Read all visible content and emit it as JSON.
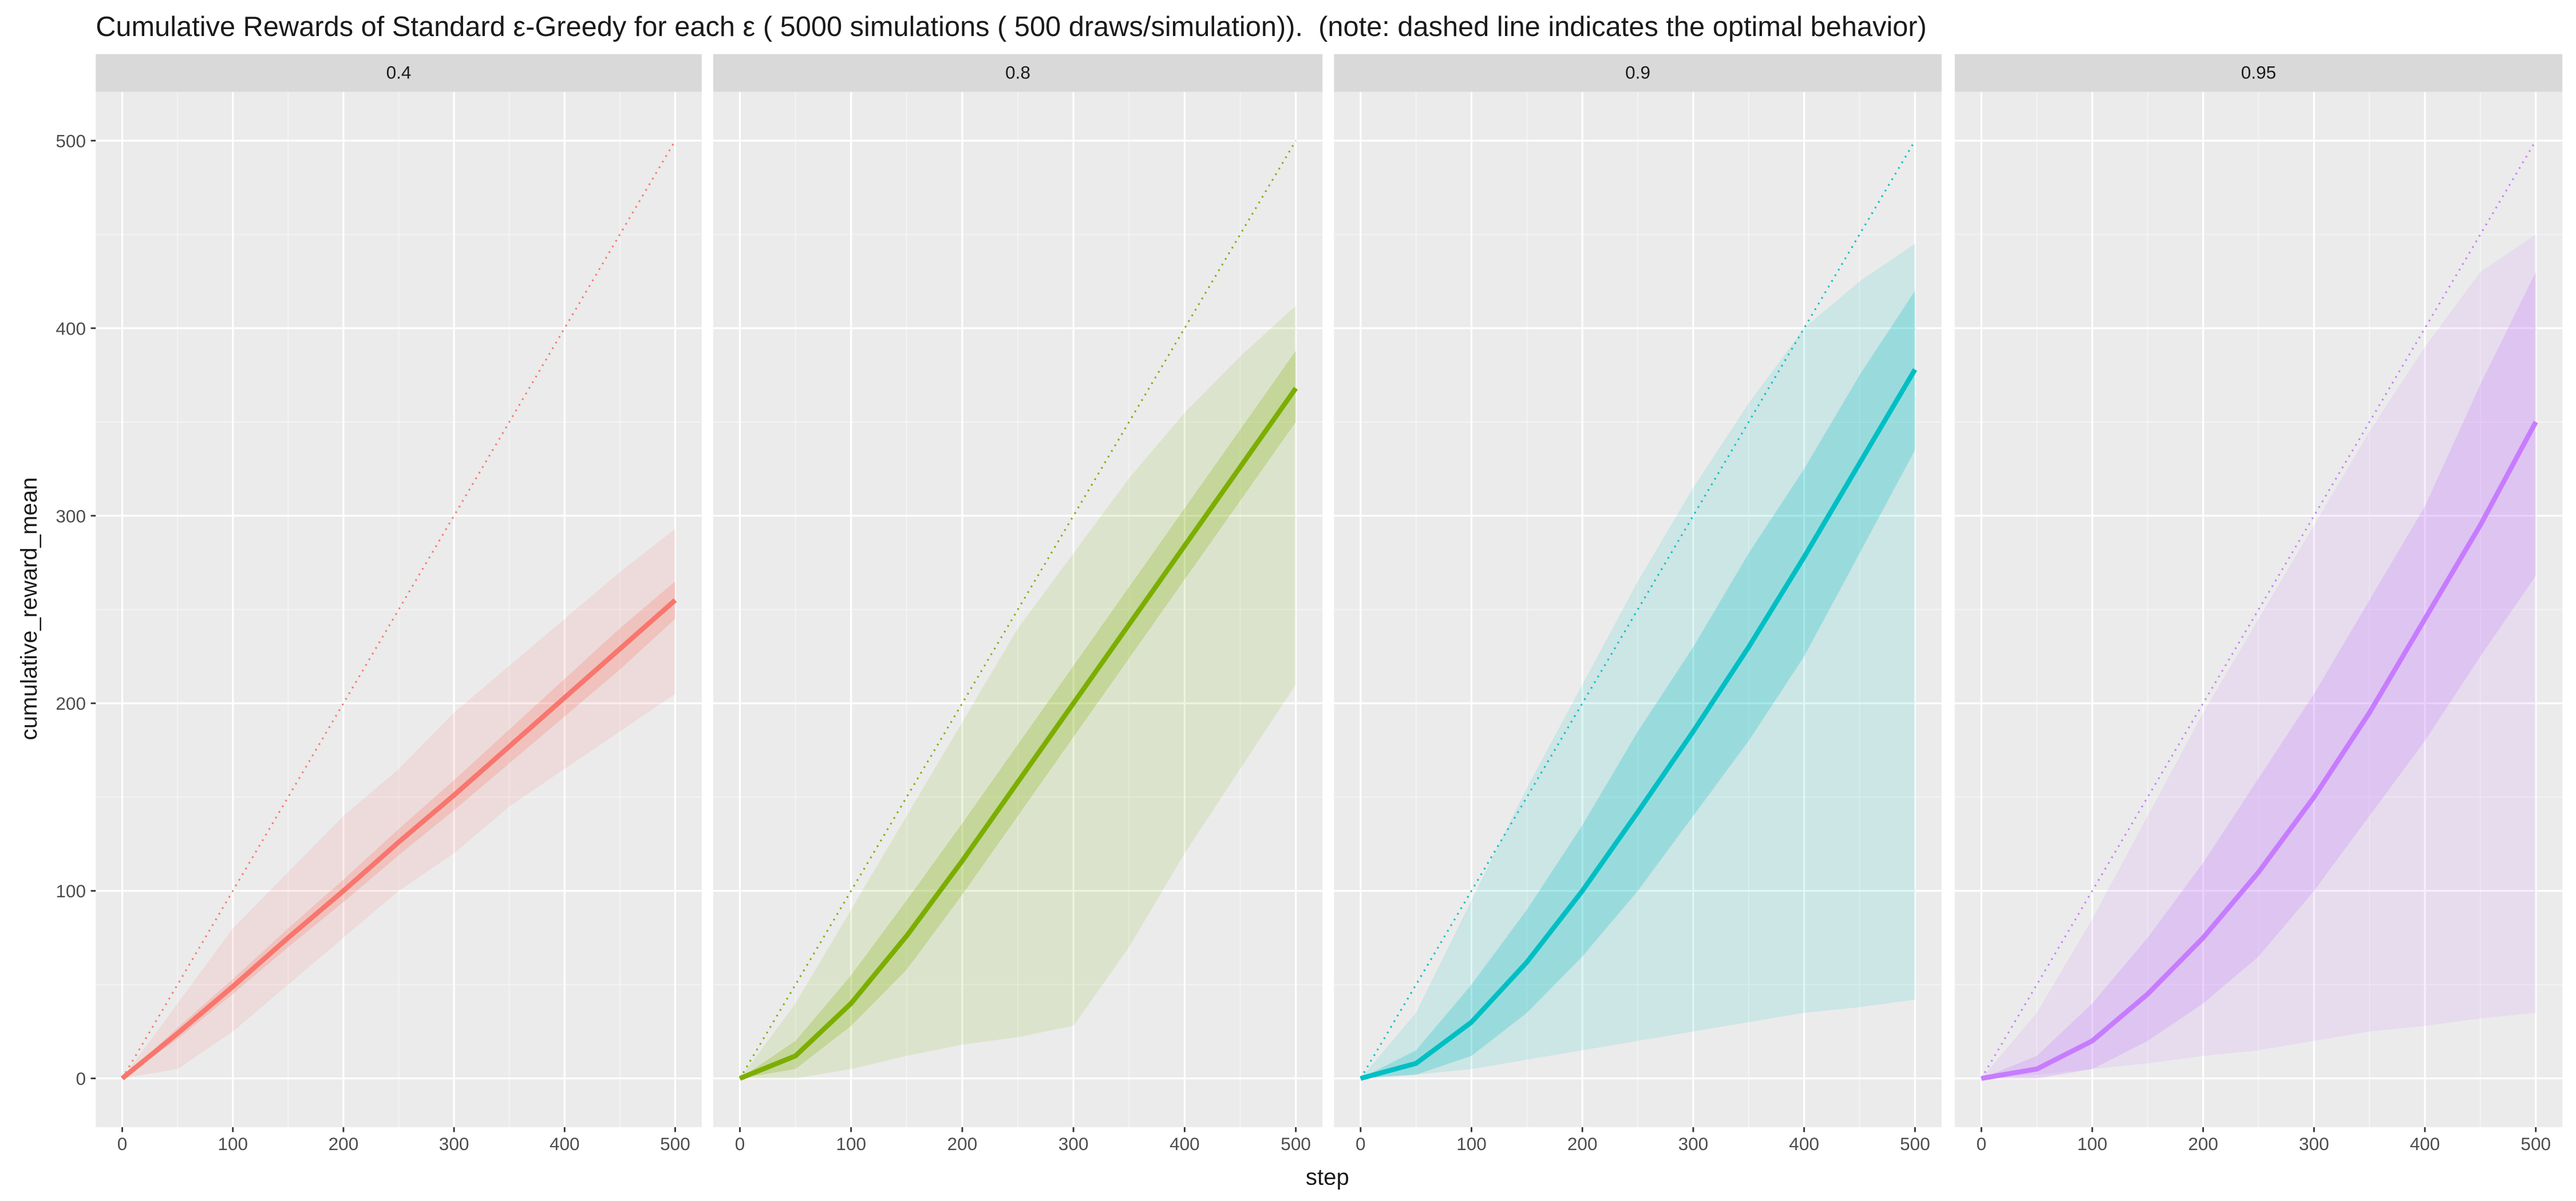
{
  "chart_data": {
    "type": "line",
    "title": "Cumulative Rewards of Standard ε-Greedy for each ε ( 5000 simulations ( 500 draws/simulation)).  (note: dashed line indicates the optimal behavior)",
    "x_label": "step",
    "y_label": "cumulative_reward_mean",
    "xlim": [
      -24,
      524
    ],
    "ylim": [
      -26,
      526
    ],
    "xticks": [
      0,
      100,
      200,
      300,
      400,
      500
    ],
    "yticks": [
      0,
      100,
      200,
      300,
      400,
      500
    ],
    "grid": true,
    "x": [
      0,
      50,
      100,
      150,
      200,
      250,
      300,
      350,
      400,
      450,
      500
    ],
    "optimal": {
      "x": [
        0,
        500
      ],
      "values": [
        0,
        500
      ]
    },
    "panels": [
      {
        "strip": "0.4",
        "color": "#F8766D",
        "mean": [
          0,
          24,
          49,
          75,
          100,
          126,
          151,
          177,
          203,
          229,
          255
        ],
        "inner_lower": [
          0,
          21,
          45,
          70,
          94,
          119,
          143,
          168,
          193,
          218,
          245
        ],
        "inner_upper": [
          0,
          27,
          53,
          80,
          106,
          133,
          159,
          186,
          213,
          240,
          265
        ],
        "outer_lower": [
          0,
          5,
          25,
          50,
          75,
          100,
          120,
          145,
          165,
          185,
          205
        ],
        "outer_upper": [
          0,
          40,
          80,
          110,
          140,
          165,
          195,
          220,
          245,
          270,
          293
        ]
      },
      {
        "strip": "0.8",
        "color": "#7CAE00",
        "mean": [
          0,
          12,
          40,
          76,
          116,
          158,
          200,
          242,
          284,
          326,
          368
        ],
        "inner_lower": [
          0,
          5,
          28,
          58,
          98,
          140,
          182,
          224,
          266,
          308,
          350
        ],
        "inner_upper": [
          0,
          20,
          55,
          95,
          136,
          178,
          220,
          262,
          304,
          346,
          388
        ],
        "outer_lower": [
          0,
          0,
          5,
          12,
          18,
          22,
          28,
          70,
          120,
          165,
          210
        ],
        "outer_upper": [
          0,
          40,
          90,
          140,
          190,
          240,
          280,
          320,
          355,
          385,
          412
        ]
      },
      {
        "strip": "0.9",
        "color": "#00BFC4",
        "mean": [
          0,
          8,
          30,
          62,
          100,
          142,
          185,
          230,
          278,
          328,
          378
        ],
        "inner_lower": [
          0,
          2,
          12,
          35,
          65,
          100,
          140,
          180,
          225,
          280,
          335
        ],
        "inner_upper": [
          0,
          15,
          50,
          90,
          135,
          185,
          230,
          280,
          325,
          375,
          420
        ],
        "outer_lower": [
          0,
          2,
          5,
          10,
          15,
          20,
          25,
          30,
          35,
          38,
          42
        ],
        "outer_upper": [
          0,
          35,
          95,
          155,
          210,
          265,
          315,
          360,
          400,
          425,
          445
        ]
      },
      {
        "strip": "0.95",
        "color": "#C77CFF",
        "mean": [
          0,
          5,
          20,
          45,
          75,
          110,
          150,
          195,
          245,
          295,
          350
        ],
        "inner_lower": [
          0,
          0,
          5,
          20,
          40,
          65,
          100,
          140,
          180,
          225,
          268
        ],
        "inner_upper": [
          0,
          12,
          40,
          75,
          115,
          160,
          205,
          255,
          305,
          370,
          430
        ],
        "outer_lower": [
          0,
          2,
          5,
          8,
          12,
          15,
          20,
          25,
          28,
          32,
          35
        ],
        "outer_upper": [
          0,
          35,
          85,
          140,
          195,
          245,
          295,
          345,
          390,
          430,
          450
        ]
      }
    ]
  }
}
